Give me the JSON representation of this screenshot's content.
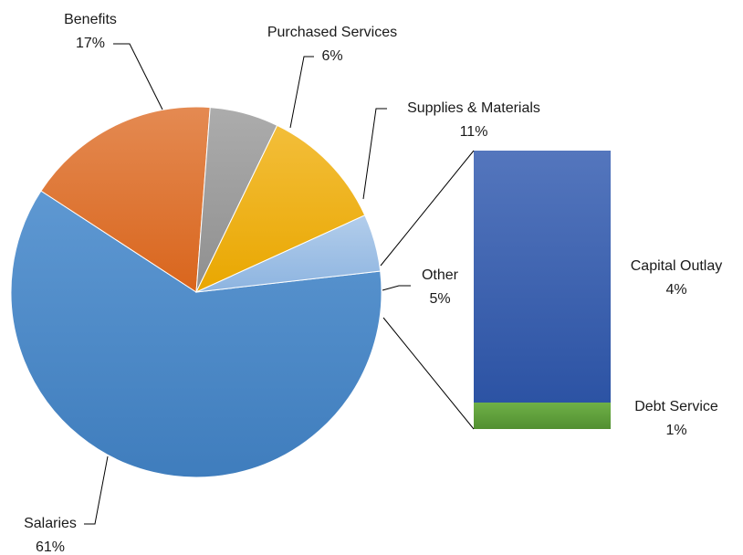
{
  "chart_data": {
    "type": "pie",
    "title": "",
    "series": [
      {
        "name": "",
        "slices": [
          {
            "label": "Salaries",
            "value": 61,
            "value_label": "61%",
            "color": "#4a86c5"
          },
          {
            "label": "Benefits",
            "value": 17,
            "value_label": "17%",
            "color": "#e2752f"
          },
          {
            "label": "Purchased Services",
            "value": 6,
            "value_label": "6%",
            "color": "#9c9c9c"
          },
          {
            "label": "Supplies & Materials",
            "value": 11,
            "value_label": "11%",
            "color": "#f1b31a"
          },
          {
            "label": "Other",
            "value": 5,
            "value_label": "5%",
            "color": "#9fc0e6"
          }
        ]
      }
    ],
    "breakout": {
      "of": "Other",
      "type": "stacked_bar",
      "segments": [
        {
          "label": "Capital Outlay",
          "value": 4,
          "value_label": "4%",
          "color": "#3a63b3"
        },
        {
          "label": "Debt Service",
          "value": 1,
          "value_label": "1%",
          "color": "#5e9e3a"
        }
      ]
    },
    "legend": "none",
    "data_labels": "outside"
  }
}
